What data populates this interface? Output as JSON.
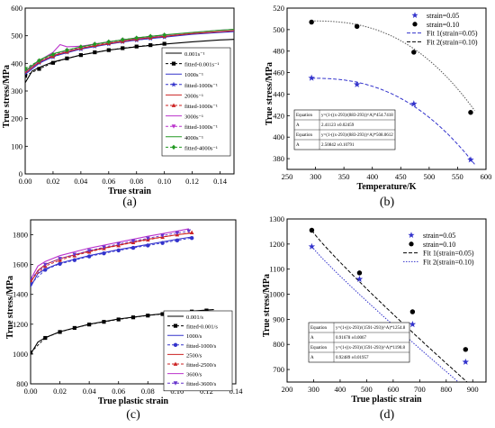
{
  "chart_data": [
    {
      "type": "line",
      "panel_label": "(a)",
      "xlabel": "True strain",
      "ylabel": "True stress/MPa",
      "xlim": [
        0.0,
        0.15
      ],
      "ylim": [
        0,
        600
      ],
      "xticks": [
        "0.00",
        "0.02",
        "0.04",
        "0.06",
        "0.08",
        "0.10",
        "0.12",
        "0.14"
      ],
      "yticks": [
        "0",
        "100",
        "200",
        "300",
        "400",
        "500",
        "600"
      ],
      "legend_position": "right",
      "legend": [
        {
          "label": "0.001s⁻¹",
          "color": "#000000",
          "marker": "none"
        },
        {
          "label": "fitted-0.001s⁻¹",
          "color": "#000000",
          "marker": "square",
          "dashed": true
        },
        {
          "label": "1000s⁻¹",
          "color": "#3333cc",
          "marker": "none"
        },
        {
          "label": "fitted-1000s⁻¹",
          "color": "#3333cc",
          "marker": "star",
          "dashed": true
        },
        {
          "label": "2000s⁻¹",
          "color": "#cc2222",
          "marker": "none"
        },
        {
          "label": "fitted-1000s⁻¹",
          "color": "#cc2222",
          "marker": "triangle",
          "dashed": true
        },
        {
          "label": "3000s⁻¹",
          "color": "#bb33cc",
          "marker": "none"
        },
        {
          "label": "fitted-1000s⁻¹",
          "color": "#bb33cc",
          "marker": "triangle-down",
          "dashed": true
        },
        {
          "label": "4000s⁻¹",
          "color": "#229922",
          "marker": "none"
        },
        {
          "label": "fitted-4000s⁻¹",
          "color": "#229922",
          "marker": "diamond",
          "dashed": true
        }
      ],
      "series": [
        {
          "color": "#000000",
          "x": [
            0.0,
            0.005,
            0.01,
            0.02,
            0.04,
            0.06,
            0.08,
            0.1,
            0.12,
            0.14,
            0.15
          ],
          "values": [
            330,
            372,
            385,
            405,
            430,
            448,
            460,
            470,
            478,
            485,
            487
          ]
        },
        {
          "color": "#000000",
          "dashed": true,
          "marker": "square",
          "x": [
            0.0,
            0.01,
            0.02,
            0.03,
            0.04,
            0.05,
            0.06,
            0.07,
            0.08,
            0.09,
            0.1
          ],
          "values": [
            355,
            380,
            402,
            418,
            430,
            440,
            448,
            455,
            461,
            466,
            471
          ]
        },
        {
          "color": "#3333cc",
          "x": [
            0.0,
            0.01,
            0.02,
            0.04,
            0.06,
            0.08,
            0.1,
            0.12,
            0.14,
            0.15
          ],
          "values": [
            360,
            400,
            425,
            452,
            470,
            485,
            495,
            505,
            512,
            515
          ]
        },
        {
          "color": "#3333cc",
          "dashed": true,
          "marker": "star",
          "x": [
            0.0,
            0.01,
            0.02,
            0.03,
            0.04,
            0.05,
            0.06,
            0.07,
            0.08,
            0.09,
            0.1
          ],
          "values": [
            370,
            402,
            423,
            440,
            452,
            462,
            470,
            478,
            484,
            490,
            495
          ]
        },
        {
          "color": "#cc2222",
          "x": [
            0.0,
            0.01,
            0.02,
            0.04,
            0.06,
            0.08,
            0.1,
            0.12,
            0.14,
            0.15
          ],
          "values": [
            365,
            405,
            428,
            455,
            472,
            488,
            498,
            508,
            515,
            518
          ]
        },
        {
          "color": "#cc2222",
          "dashed": true,
          "marker": "triangle",
          "x": [
            0.0,
            0.01,
            0.02,
            0.03,
            0.04,
            0.05,
            0.06,
            0.07,
            0.08,
            0.09,
            0.1
          ],
          "values": [
            375,
            405,
            426,
            442,
            455,
            465,
            473,
            480,
            487,
            493,
            498
          ]
        },
        {
          "color": "#bb33cc",
          "x": [
            0.0,
            0.01,
            0.02,
            0.025,
            0.03,
            0.04,
            0.06,
            0.08,
            0.1,
            0.12,
            0.14,
            0.15
          ],
          "values": [
            370,
            410,
            440,
            468,
            460,
            462,
            478,
            492,
            502,
            512,
            520,
            523
          ]
        },
        {
          "color": "#bb33cc",
          "dashed": true,
          "marker": "triangle-down",
          "x": [
            0.0,
            0.01,
            0.02,
            0.03,
            0.04,
            0.05,
            0.06,
            0.07,
            0.08,
            0.09,
            0.1
          ],
          "values": [
            378,
            408,
            430,
            446,
            458,
            468,
            476,
            484,
            490,
            496,
            501
          ]
        },
        {
          "color": "#229922",
          "x": [
            0.0,
            0.01,
            0.02,
            0.04,
            0.06,
            0.08,
            0.1,
            0.12,
            0.14,
            0.15
          ],
          "values": [
            372,
            412,
            435,
            460,
            478,
            492,
            503,
            512,
            520,
            523
          ]
        },
        {
          "color": "#229922",
          "dashed": true,
          "marker": "diamond",
          "x": [
            0.0,
            0.01,
            0.02,
            0.03,
            0.04,
            0.05,
            0.06,
            0.07,
            0.08,
            0.09,
            0.1
          ],
          "values": [
            382,
            410,
            432,
            448,
            460,
            470,
            478,
            486,
            492,
            498,
            503
          ]
        }
      ]
    },
    {
      "type": "scatter",
      "panel_label": "(b)",
      "xlabel": "Temperature/K",
      "ylabel": "True stress/MPa",
      "xlim": [
        250,
        600
      ],
      "ylim": [
        370,
        520
      ],
      "xticks": [
        "250",
        "300",
        "350",
        "400",
        "450",
        "500",
        "550",
        "600"
      ],
      "yticks": [
        "380",
        "400",
        "420",
        "440",
        "460",
        "480",
        "500",
        "520"
      ],
      "legend_position": "top-right",
      "legend": [
        {
          "label": "strain=0.05",
          "color": "#3333cc",
          "marker": "star"
        },
        {
          "label": "strain=0.10",
          "color": "#000000",
          "marker": "circle"
        },
        {
          "label": "Fit 1(strain=0.05)",
          "color": "#3333cc",
          "dashed": true
        },
        {
          "label": "Fit 2(strain=0.10)",
          "color": "#000000",
          "dashed": true
        }
      ],
      "series": [
        {
          "name": "strain=0.05",
          "color": "#3333cc",
          "marker": "star",
          "x": [
            293,
            373,
            473,
            573
          ],
          "values": [
            455,
            449,
            431,
            379
          ]
        },
        {
          "name": "strain=0.10",
          "color": "#000000",
          "marker": "circle",
          "x": [
            293,
            373,
            473,
            573
          ],
          "values": [
            507,
            503,
            479,
            423
          ]
        }
      ],
      "table": [
        [
          "Equation",
          "y=(1-((x-293)/(883-293))^A)*454.7418"
        ],
        [
          "A",
          "2.41123 ±0.02459"
        ],
        [
          "Equation",
          "y=(1-((x-293)/(883-293))^A)*508.0612"
        ],
        [
          "A",
          "2.50842 ±0.10791"
        ]
      ]
    },
    {
      "type": "line",
      "panel_label": "(c)",
      "xlabel": "True plastic strain",
      "ylabel": "True stress/MPa",
      "xlim": [
        0.0,
        0.14
      ],
      "ylim": [
        800,
        1900
      ],
      "xticks": [
        "0.00",
        "0.02",
        "0.04",
        "0.06",
        "0.08",
        "0.10",
        "0.12",
        "0.14"
      ],
      "yticks": [
        "800",
        "1000",
        "1200",
        "1400",
        "1600",
        "1800"
      ],
      "legend_position": "right",
      "legend": [
        {
          "label": "0.001/s",
          "color": "#000000",
          "marker": "none"
        },
        {
          "label": "fitted-0.001/s",
          "color": "#000000",
          "marker": "square",
          "dashed": true
        },
        {
          "label": "1000/s",
          "color": "#3333cc",
          "marker": "none"
        },
        {
          "label": "fitted-1000/s",
          "color": "#3333cc",
          "marker": "circle",
          "dashed": true
        },
        {
          "label": "2500/s",
          "color": "#cc2222",
          "marker": "none"
        },
        {
          "label": "fitted-2500/s",
          "color": "#cc2222",
          "marker": "triangle",
          "dashed": true
        },
        {
          "label": "3600/s",
          "color": "#bb33cc",
          "marker": "none"
        },
        {
          "label": "fitted-3600/s",
          "color": "#6633cc",
          "marker": "triangle-down",
          "dashed": true
        }
      ],
      "series": [
        {
          "color": "#000000",
          "x": [
            0.0,
            0.005,
            0.01,
            0.02,
            0.04,
            0.06,
            0.08,
            0.1,
            0.12,
            0.125
          ],
          "values": [
            1000,
            1080,
            1110,
            1150,
            1200,
            1235,
            1260,
            1280,
            1295,
            1298
          ]
        },
        {
          "color": "#000000",
          "dashed": true,
          "marker": "square",
          "x": [
            0.0,
            0.01,
            0.02,
            0.03,
            0.04,
            0.05,
            0.06,
            0.07,
            0.08,
            0.09,
            0.1,
            0.11,
            0.12
          ],
          "values": [
            1010,
            1108,
            1148,
            1175,
            1198,
            1216,
            1232,
            1246,
            1258,
            1268,
            1277,
            1285,
            1292
          ]
        },
        {
          "color": "#3333cc",
          "x": [
            0.0,
            0.005,
            0.01,
            0.02,
            0.04,
            0.06,
            0.08,
            0.1,
            0.11
          ],
          "values": [
            1450,
            1540,
            1570,
            1610,
            1660,
            1700,
            1735,
            1770,
            1785
          ]
        },
        {
          "color": "#3333cc",
          "dashed": true,
          "marker": "circle",
          "x": [
            0.0,
            0.01,
            0.02,
            0.03,
            0.04,
            0.05,
            0.06,
            0.07,
            0.08,
            0.09,
            0.1,
            0.11
          ],
          "values": [
            1470,
            1565,
            1605,
            1630,
            1655,
            1675,
            1695,
            1712,
            1728,
            1745,
            1762,
            1778
          ]
        },
        {
          "color": "#cc2222",
          "x": [
            0.0,
            0.005,
            0.01,
            0.02,
            0.04,
            0.06,
            0.08,
            0.1,
            0.11
          ],
          "values": [
            1480,
            1560,
            1600,
            1640,
            1690,
            1730,
            1770,
            1800,
            1812
          ]
        },
        {
          "color": "#cc2222",
          "dashed": true,
          "marker": "triangle",
          "x": [
            0.0,
            0.01,
            0.02,
            0.03,
            0.04,
            0.05,
            0.06,
            0.07,
            0.08,
            0.09,
            0.1,
            0.11
          ],
          "values": [
            1495,
            1590,
            1630,
            1660,
            1685,
            1708,
            1728,
            1748,
            1766,
            1784,
            1800,
            1815
          ]
        },
        {
          "color": "#bb33cc",
          "x": [
            0.0,
            0.005,
            0.01,
            0.02,
            0.04,
            0.06,
            0.08,
            0.1,
            0.108
          ],
          "values": [
            1500,
            1590,
            1620,
            1660,
            1710,
            1750,
            1790,
            1825,
            1840
          ]
        },
        {
          "color": "#6633cc",
          "dashed": true,
          "marker": "triangle-down",
          "x": [
            0.0,
            0.01,
            0.02,
            0.03,
            0.04,
            0.05,
            0.06,
            0.07,
            0.08,
            0.09,
            0.1,
            0.108
          ],
          "values": [
            1505,
            1600,
            1640,
            1668,
            1694,
            1716,
            1738,
            1758,
            1776,
            1795,
            1812,
            1825
          ]
        }
      ]
    },
    {
      "type": "scatter",
      "panel_label": "(d)",
      "xlabel": "True plastic strain",
      "ylabel": "True stress/MPa",
      "xlim": [
        200,
        950
      ],
      "ylim": [
        650,
        1300
      ],
      "xticks": [
        "200",
        "300",
        "400",
        "500",
        "600",
        "700",
        "800",
        "900"
      ],
      "yticks": [
        "700",
        "800",
        "900",
        "1000",
        "1100",
        "1200",
        "1300"
      ],
      "legend_position": "top-right",
      "legend": [
        {
          "label": "strain=0.05",
          "color": "#3333cc",
          "marker": "star"
        },
        {
          "label": "strain=0.10",
          "color": "#000000",
          "marker": "circle"
        },
        {
          "label": "Fit 1(strain=0.05)",
          "color": "#000000",
          "dashed": true
        },
        {
          "label": "Fit 2(strain=0.10)",
          "color": "#3333cc",
          "dotted": true
        }
      ],
      "series": [
        {
          "name": "strain=0.05",
          "color": "#3333cc",
          "marker": "star",
          "x": [
            293,
            473,
            673,
            873
          ],
          "values": [
            1190,
            1060,
            880,
            730
          ]
        },
        {
          "name": "strain=0.10",
          "color": "#000000",
          "marker": "circle",
          "x": [
            293,
            473,
            673,
            873
          ],
          "values": [
            1255,
            1085,
            930,
            780
          ]
        }
      ],
      "table": [
        [
          "Equation",
          "y=(1-((x-293)/(1591-293))^A)*1254.8"
        ],
        [
          "A",
          "0.91678 ±0.0067"
        ],
        [
          "Equation",
          "y=(1-((x-293)/(1591-293))^A)*1190.8"
        ],
        [
          "A",
          "0.92489 ±0.01957"
        ]
      ]
    }
  ]
}
